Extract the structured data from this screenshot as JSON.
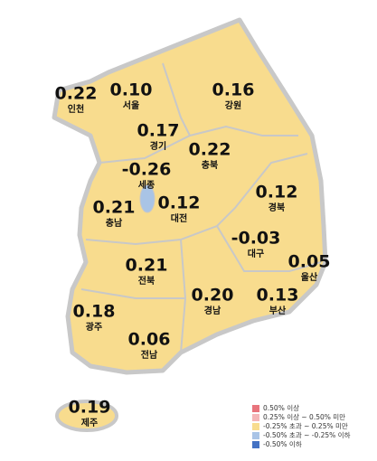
{
  "regions": [
    {
      "name": "인천",
      "value": "0.22"
    },
    {
      "name": "서울",
      "value": "0.10"
    },
    {
      "name": "강원",
      "value": "0.16"
    },
    {
      "name": "경기",
      "value": "0.17"
    },
    {
      "name": "충북",
      "value": "0.22"
    },
    {
      "name": "세종",
      "value": "-0.26"
    },
    {
      "name": "대전",
      "value": "0.12"
    },
    {
      "name": "경북",
      "value": "0.12"
    },
    {
      "name": "충남",
      "value": "0.21"
    },
    {
      "name": "대구",
      "value": "-0.03"
    },
    {
      "name": "울산",
      "value": "0.05"
    },
    {
      "name": "전북",
      "value": "0.21"
    },
    {
      "name": "경남",
      "value": "0.20"
    },
    {
      "name": "부산",
      "value": "0.13"
    },
    {
      "name": "광주",
      "value": "0.18"
    },
    {
      "name": "전남",
      "value": "0.06"
    },
    {
      "name": "제주",
      "value": "0.19"
    }
  ],
  "legend": [
    {
      "label": "0.50% 이상",
      "color": "#e8747c"
    },
    {
      "label": "0.25% 이상 ~ 0.50% 미만",
      "color": "#f4b6b8"
    },
    {
      "label": "-0.25% 초과 ~ 0.25% 미만",
      "color": "#f8dc8e"
    },
    {
      "label": "-0.50% 초과 ~ -0.25% 이하",
      "color": "#a9c4e6"
    },
    {
      "label": "-0.50% 이하",
      "color": "#4472c4"
    }
  ]
}
